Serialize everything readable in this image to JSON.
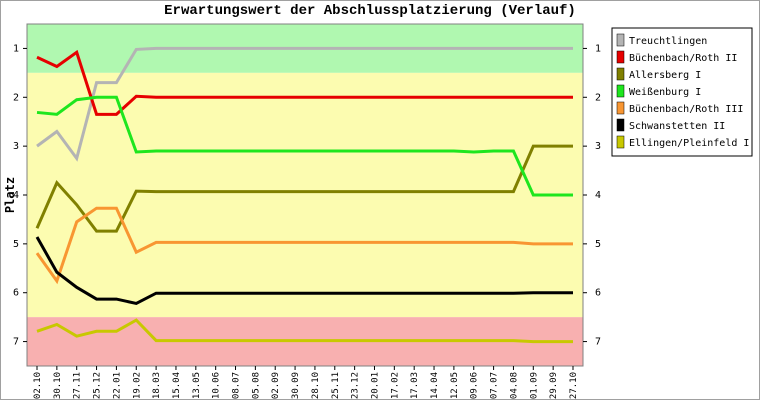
{
  "chart_data": {
    "type": "line",
    "title": "Erwartungswert der Abschlussplatzierung (Verlauf)",
    "y_label": "Platz",
    "categories": [
      "02.10",
      "30.10",
      "27.11",
      "25.12",
      "22.01",
      "19.02",
      "18.03",
      "15.04",
      "13.05",
      "10.06",
      "08.07",
      "05.08",
      "02.09",
      "30.09",
      "28.10",
      "25.11",
      "23.12",
      "20.01",
      "17.02",
      "17.03",
      "14.04",
      "12.05",
      "09.06",
      "07.07",
      "04.08",
      "01.09",
      "29.09",
      "27.10"
    ],
    "ylim": [
      0.5,
      7.5
    ],
    "y_inverted": true,
    "yticks": [
      1,
      2,
      3,
      4,
      5,
      6,
      7
    ],
    "bands": [
      {
        "from": 0.5,
        "to": 1.5,
        "color": "#b0f8b0"
      },
      {
        "from": 1.5,
        "to": 6.5,
        "color": "#fcfcb0"
      },
      {
        "from": 6.5,
        "to": 7.5,
        "color": "#f8b0b0"
      }
    ],
    "series": [
      {
        "name": "Treuchtlingen",
        "color": "#b4b4b4",
        "values": [
          3.0,
          2.7,
          3.25,
          1.7,
          1.7,
          1.02,
          1.0,
          1.0,
          1.0,
          1.0,
          1.0,
          1.0,
          1.0,
          1.0,
          1.0,
          1.0,
          1.0,
          1.0,
          1.0,
          1.0,
          1.0,
          1.0,
          1.0,
          1.0,
          1.0,
          1.0,
          1.0,
          1.0
        ]
      },
      {
        "name": "Büchenbach/Roth II",
        "color": "#e60000",
        "values": [
          1.18,
          1.37,
          1.08,
          2.35,
          2.35,
          1.98,
          2.0,
          2.0,
          2.0,
          2.0,
          2.0,
          2.0,
          2.0,
          2.0,
          2.0,
          2.0,
          2.0,
          2.0,
          2.0,
          2.0,
          2.0,
          2.0,
          2.0,
          2.0,
          2.0,
          2.0,
          2.0,
          2.0
        ]
      },
      {
        "name": "Allersberg I",
        "color": "#808000",
        "values": [
          4.68,
          3.75,
          4.2,
          4.74,
          4.74,
          3.92,
          3.93,
          3.93,
          3.93,
          3.93,
          3.93,
          3.93,
          3.93,
          3.93,
          3.93,
          3.93,
          3.93,
          3.93,
          3.93,
          3.93,
          3.93,
          3.93,
          3.93,
          3.93,
          3.93,
          3.0,
          3.0,
          3.0
        ]
      },
      {
        "name": "Weißenburg I",
        "color": "#1ee61e",
        "values": [
          2.31,
          2.35,
          2.05,
          2.0,
          2.0,
          3.12,
          3.1,
          3.1,
          3.1,
          3.1,
          3.1,
          3.1,
          3.1,
          3.1,
          3.1,
          3.1,
          3.1,
          3.1,
          3.1,
          3.1,
          3.1,
          3.1,
          3.12,
          3.1,
          3.1,
          4.0,
          4.0,
          4.0
        ]
      },
      {
        "name": "Büchenbach/Roth III",
        "color": "#f89632",
        "values": [
          5.19,
          5.76,
          4.55,
          4.27,
          4.27,
          5.17,
          4.97,
          4.97,
          4.97,
          4.97,
          4.97,
          4.97,
          4.97,
          4.97,
          4.97,
          4.97,
          4.97,
          4.97,
          4.97,
          4.97,
          4.97,
          4.97,
          4.97,
          4.97,
          4.97,
          5.0,
          5.0,
          5.0
        ]
      },
      {
        "name": "Schwanstetten II",
        "color": "#000000",
        "values": [
          4.86,
          5.58,
          5.89,
          6.13,
          6.13,
          6.22,
          6.01,
          6.01,
          6.01,
          6.01,
          6.01,
          6.01,
          6.01,
          6.01,
          6.01,
          6.01,
          6.01,
          6.01,
          6.01,
          6.01,
          6.01,
          6.01,
          6.01,
          6.01,
          6.01,
          6.0,
          6.0,
          6.0
        ]
      },
      {
        "name": "Ellingen/Pleinfeld I",
        "color": "#c8c800",
        "values": [
          6.79,
          6.65,
          6.89,
          6.79,
          6.79,
          6.56,
          6.98,
          6.98,
          6.98,
          6.98,
          6.98,
          6.98,
          6.98,
          6.98,
          6.98,
          6.98,
          6.98,
          6.98,
          6.98,
          6.98,
          6.98,
          6.98,
          6.98,
          6.98,
          6.98,
          7.0,
          7.0,
          7.0
        ]
      }
    ]
  }
}
